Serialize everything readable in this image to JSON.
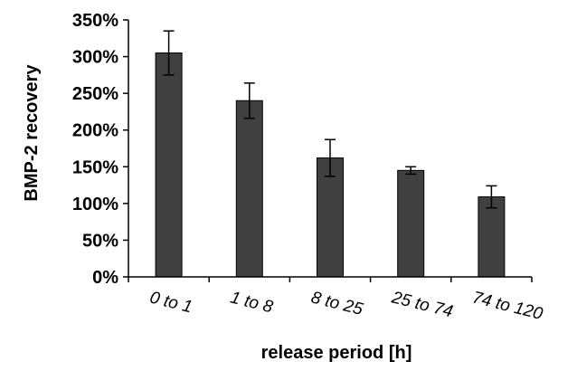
{
  "chart_data": {
    "type": "bar",
    "title": "",
    "xlabel": "release period [h]",
    "ylabel": "BMP-2 recovery",
    "categories": [
      "0 to 1",
      "1 to 8",
      "8 to 25",
      "25 to 74",
      "74 to 120"
    ],
    "series": [
      {
        "values": [
          305,
          240,
          162,
          145,
          109
        ],
        "error": [
          30,
          24,
          25,
          5,
          15
        ],
        "color": "#404040"
      }
    ],
    "ylim": [
      0,
      350
    ],
    "yticks": [
      0,
      50,
      100,
      150,
      200,
      250,
      300,
      350
    ],
    "ytick_labels": [
      "0%",
      "50%",
      "100%",
      "150%",
      "200%",
      "250%",
      "300%",
      "350%"
    ],
    "value_unit": "percent",
    "grid": false,
    "legend": "none"
  }
}
